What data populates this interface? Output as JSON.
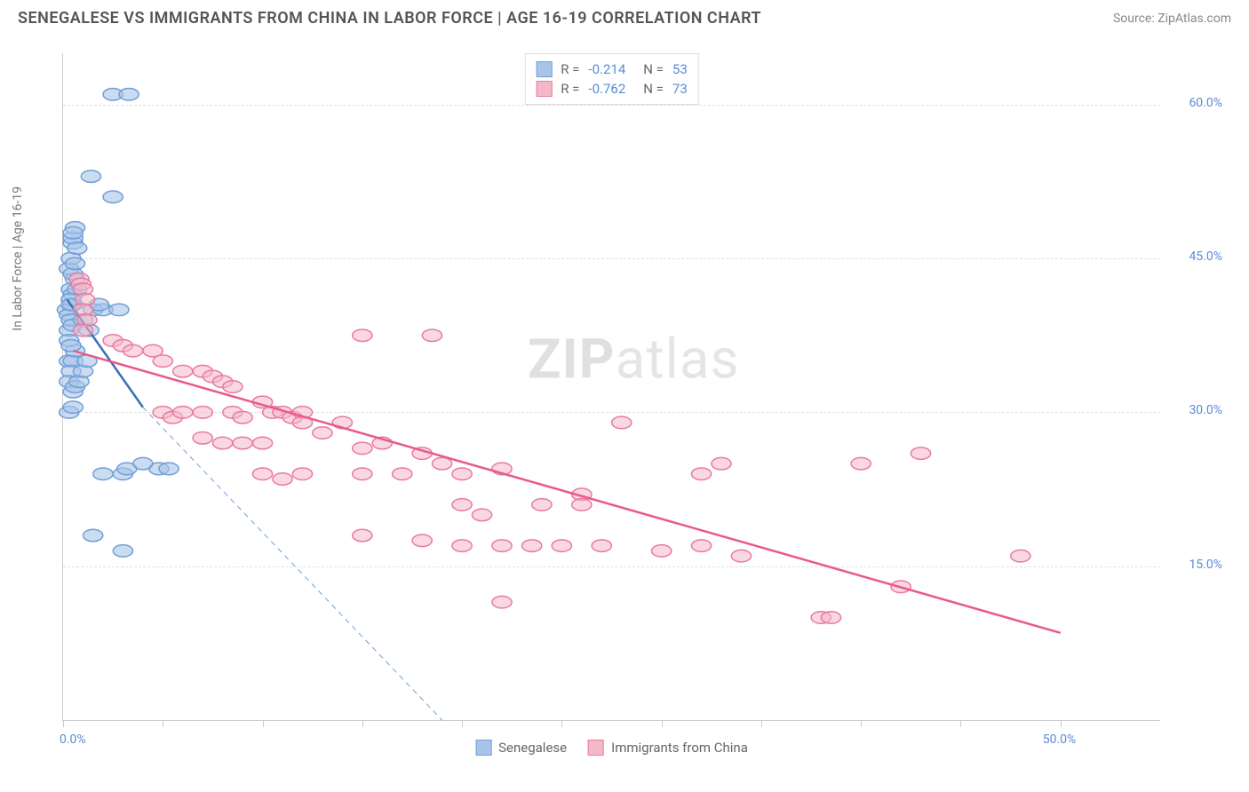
{
  "header": {
    "title": "SENEGALESE VS IMMIGRANTS FROM CHINA IN LABOR FORCE | AGE 16-19 CORRELATION CHART",
    "source": "Source: ZipAtlas.com"
  },
  "chart": {
    "type": "scatter",
    "y_label": "In Labor Force | Age 16-19",
    "watermark": "ZIPatlas",
    "background_color": "#ffffff",
    "grid_color": "#dddddd",
    "axis_color": "#cccccc",
    "axis_label_color": "#5b8bd4",
    "xlim": [
      0,
      55
    ],
    "ylim": [
      0,
      65
    ],
    "y_ticks": [
      15,
      30,
      45,
      60
    ],
    "y_tick_labels": [
      "15.0%",
      "30.0%",
      "45.0%",
      "60.0%"
    ],
    "x_ticks": [
      0,
      5,
      10,
      15,
      20,
      25,
      30,
      35,
      40,
      45,
      50
    ],
    "x_axis_labels": {
      "start": "0.0%",
      "end": "50.0%"
    },
    "marker_radius": 9,
    "marker_stroke_width": 1.5,
    "trend_line_width": 2.5,
    "extrapolation_dash": "6,5",
    "legend_top": [
      {
        "r_label": "R =",
        "r_value": "-0.214",
        "n_label": "N =",
        "n_value": "53",
        "fill": "#a8c5e8",
        "stroke": "#6f9fd8"
      },
      {
        "r_label": "R =",
        "r_value": "-0.762",
        "n_label": "N =",
        "n_value": "73",
        "fill": "#f5b8c8",
        "stroke": "#e77ba0"
      }
    ],
    "legend_bottom": [
      {
        "label": "Senegalese",
        "fill": "#a8c5e8",
        "stroke": "#6f9fd8"
      },
      {
        "label": "Immigrants from China",
        "fill": "#f5b8c8",
        "stroke": "#e77ba0"
      }
    ],
    "series": [
      {
        "name": "Senegalese",
        "fill": "#a8c5e8",
        "stroke": "#6f9fd8",
        "fill_opacity": 0.6,
        "trend_color": "#3a6fb7",
        "trend": {
          "x1": 0.2,
          "y1": 41,
          "x2": 4,
          "y2": 30.5
        },
        "extrapolation": {
          "x1": 4,
          "y1": 30.5,
          "x2": 19,
          "y2": 0
        },
        "points": [
          [
            0.2,
            40
          ],
          [
            0.3,
            38
          ],
          [
            0.3,
            39.5
          ],
          [
            0.4,
            39
          ],
          [
            0.5,
            40.5
          ],
          [
            0.5,
            38.5
          ],
          [
            0.4,
            42
          ],
          [
            0.5,
            41.5
          ],
          [
            0.6,
            43
          ],
          [
            0.7,
            42
          ],
          [
            0.3,
            44
          ],
          [
            0.4,
            45
          ],
          [
            0.5,
            46.5
          ],
          [
            0.5,
            47
          ],
          [
            0.7,
            46
          ],
          [
            0.4,
            41
          ],
          [
            2.5,
            61
          ],
          [
            3.3,
            61
          ],
          [
            1.4,
            53
          ],
          [
            2.5,
            51
          ],
          [
            0.6,
            48
          ],
          [
            0.5,
            47.5
          ],
          [
            0.3,
            35
          ],
          [
            0.5,
            35
          ],
          [
            0.4,
            34
          ],
          [
            0.6,
            36
          ],
          [
            0.3,
            37
          ],
          [
            0.4,
            36.5
          ],
          [
            0.3,
            33
          ],
          [
            0.5,
            32
          ],
          [
            0.6,
            32.5
          ],
          [
            0.8,
            33
          ],
          [
            1.0,
            34
          ],
          [
            1.2,
            35
          ],
          [
            0.3,
            30
          ],
          [
            0.5,
            30.5
          ],
          [
            1.5,
            40
          ],
          [
            2.0,
            40
          ],
          [
            2.8,
            40
          ],
          [
            1.8,
            40.5
          ],
          [
            2.0,
            24
          ],
          [
            3.0,
            24
          ],
          [
            3.2,
            24.5
          ],
          [
            4.8,
            24.5
          ],
          [
            5.3,
            24.5
          ],
          [
            4.0,
            25
          ],
          [
            1.5,
            18
          ],
          [
            3.0,
            16.5
          ],
          [
            0.5,
            43.5
          ],
          [
            0.6,
            44.5
          ],
          [
            0.4,
            40.5
          ],
          [
            1.0,
            39
          ],
          [
            1.3,
            38
          ]
        ]
      },
      {
        "name": "Immigrants from China",
        "fill": "#f5b8c8",
        "stroke": "#e77ba0",
        "fill_opacity": 0.55,
        "trend_color": "#e85a8a",
        "trend": {
          "x1": 0.5,
          "y1": 36,
          "x2": 50,
          "y2": 8.5
        },
        "points": [
          [
            0.8,
            43
          ],
          [
            0.9,
            42.5
          ],
          [
            1.0,
            42
          ],
          [
            1.1,
            41
          ],
          [
            1.0,
            40
          ],
          [
            1.2,
            39
          ],
          [
            1.0,
            38
          ],
          [
            2.5,
            37
          ],
          [
            3.0,
            36.5
          ],
          [
            3.5,
            36
          ],
          [
            4.5,
            36
          ],
          [
            5.0,
            35
          ],
          [
            6.0,
            34
          ],
          [
            7.0,
            34
          ],
          [
            7.5,
            33.5
          ],
          [
            8.0,
            33
          ],
          [
            8.5,
            32.5
          ],
          [
            5.0,
            30
          ],
          [
            5.5,
            29.5
          ],
          [
            6.0,
            30
          ],
          [
            7.0,
            30
          ],
          [
            8.5,
            30
          ],
          [
            9.0,
            29.5
          ],
          [
            10,
            31
          ],
          [
            10.5,
            30
          ],
          [
            11,
            30
          ],
          [
            11.5,
            29.5
          ],
          [
            12,
            30
          ],
          [
            7,
            27.5
          ],
          [
            8,
            27
          ],
          [
            9,
            27
          ],
          [
            10,
            27
          ],
          [
            15,
            37.5
          ],
          [
            18.5,
            37.5
          ],
          [
            12,
            29
          ],
          [
            13,
            28
          ],
          [
            14,
            29
          ],
          [
            15,
            26.5
          ],
          [
            16,
            27
          ],
          [
            18,
            26
          ],
          [
            19,
            25
          ],
          [
            20,
            24
          ],
          [
            22,
            24.5
          ],
          [
            26,
            22
          ],
          [
            10,
            24
          ],
          [
            11,
            23.5
          ],
          [
            12,
            24
          ],
          [
            15,
            24
          ],
          [
            17,
            24
          ],
          [
            20,
            21
          ],
          [
            21,
            20
          ],
          [
            24,
            21
          ],
          [
            26,
            21
          ],
          [
            28,
            29
          ],
          [
            15,
            18
          ],
          [
            18,
            17.5
          ],
          [
            20,
            17
          ],
          [
            22,
            17
          ],
          [
            23.5,
            17
          ],
          [
            22,
            11.5
          ],
          [
            25,
            17
          ],
          [
            27,
            17
          ],
          [
            30,
            16.5
          ],
          [
            33,
            25
          ],
          [
            32,
            17
          ],
          [
            34,
            16
          ],
          [
            40,
            25
          ],
          [
            43,
            26
          ],
          [
            38,
            10
          ],
          [
            38.5,
            10
          ],
          [
            42,
            13
          ],
          [
            48,
            16
          ],
          [
            32,
            24
          ]
        ]
      }
    ]
  }
}
